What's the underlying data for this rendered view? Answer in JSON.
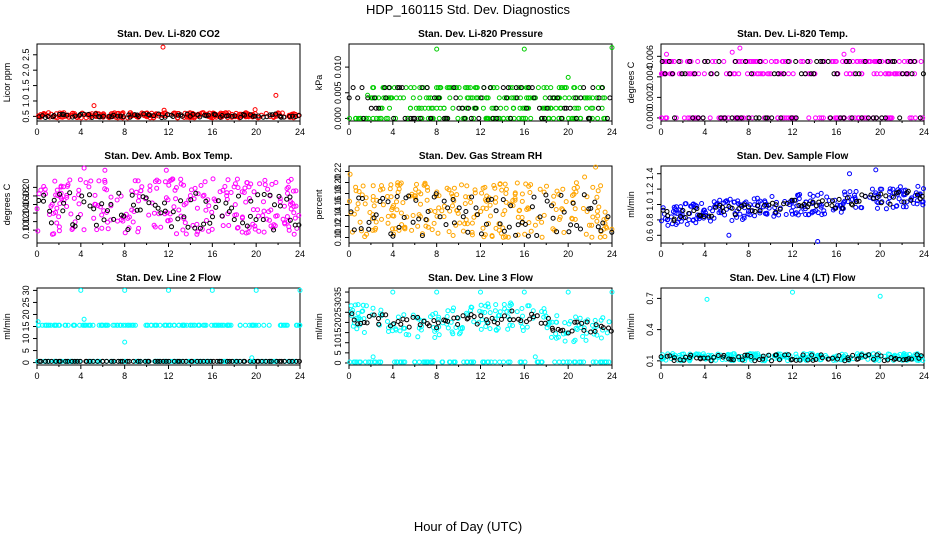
{
  "figure": {
    "title": "HDP_160115  Std. Dev. Diagnostics",
    "xlabel": "Hour of Day (UTC)"
  },
  "colors": {
    "red": "#ff0000",
    "green": "#00cc00",
    "magenta": "#ff00ff",
    "orange": "#ffa500",
    "blue": "#0000ff",
    "cyan": "#00ffff",
    "black": "#000000"
  },
  "chart_data": [
    {
      "type": "scatter",
      "title": "Stan. Dev. Li-820 CO2",
      "ylabel": "Licor ppm",
      "xlim": [
        0,
        24
      ],
      "ylim": [
        0.35,
        2.85
      ],
      "xticks": [
        0,
        4,
        8,
        12,
        16,
        20,
        24
      ],
      "yticks": [
        0.5,
        1.0,
        1.5,
        2.0,
        2.5
      ],
      "ytick_labels": [
        "0.5",
        "1.0",
        "1.5",
        "2.0",
        "2.5"
      ],
      "color_key": "red",
      "pattern": "band",
      "band": [
        0.45,
        0.62
      ],
      "black_band": [
        0.46,
        0.58
      ],
      "outliers": [
        [
          11.5,
          2.75
        ],
        [
          21.8,
          1.18
        ],
        [
          5.2,
          0.85
        ],
        [
          19.9,
          0.72
        ],
        [
          11.6,
          0.7
        ]
      ]
    },
    {
      "type": "scatter",
      "title": "Stan. Dev. Li-820 Pressure",
      "ylabel": "kPa",
      "xlim": [
        0,
        24
      ],
      "ylim": [
        -0.0005,
        0.0145
      ],
      "xticks": [
        0,
        4,
        8,
        12,
        16,
        20,
        24
      ],
      "yticks": [
        0.0,
        0.005,
        0.01
      ],
      "ytick_labels": [
        "0.000",
        "0.005",
        "0.010"
      ],
      "color_key": "green",
      "pattern": "levels",
      "levels": [
        0.0,
        0.002,
        0.004,
        0.006
      ],
      "level_range": [
        2,
        24
      ],
      "black_levels": [
        0.0,
        0.002,
        0.004,
        0.006
      ],
      "outliers": [
        [
          8,
          0.0135
        ],
        [
          16,
          0.0135
        ],
        [
          24,
          0.0138
        ],
        [
          20,
          0.008
        ],
        [
          1.7,
          0.0045
        ]
      ]
    },
    {
      "type": "scatter",
      "title": "Stan. Dev. Li-820 Temp.",
      "ylabel": "degrees C",
      "xlim": [
        0,
        24
      ],
      "ylim": [
        -0.0003,
        0.0072
      ],
      "xticks": [
        0,
        4,
        8,
        12,
        16,
        20,
        24
      ],
      "yticks": [
        0.0,
        0.002,
        0.004,
        0.006
      ],
      "ytick_labels": [
        "0.000",
        "0.002",
        "0.004",
        "0.006"
      ],
      "color_key": "magenta",
      "pattern": "levels",
      "levels": [
        0.0,
        0.0043,
        0.0055
      ],
      "level_range": [
        0,
        24
      ],
      "black_levels": [
        0.0,
        0.0043,
        0.0055
      ],
      "outliers": [
        [
          7.2,
          0.0068
        ],
        [
          6.5,
          0.0064
        ],
        [
          16.7,
          0.0062
        ],
        [
          0.5,
          0.0062
        ],
        [
          17.5,
          0.0066
        ]
      ]
    },
    {
      "type": "scatter",
      "title": "Stan. Dev. Amb. Box Temp.",
      "ylabel": "degrees C",
      "xlim": [
        0,
        24
      ],
      "ylim": [
        0.07,
        0.25
      ],
      "xticks": [
        0,
        4,
        8,
        12,
        16,
        20,
        24
      ],
      "yticks": [
        0.1,
        0.12,
        0.14,
        0.16,
        0.18,
        0.2
      ],
      "ytick_labels": [
        "0.10",
        "0.12",
        "0.14",
        "0.16",
        "0.18",
        "0.20"
      ],
      "color_key": "magenta",
      "pattern": "band",
      "band": [
        0.09,
        0.22
      ],
      "black_band": [
        0.1,
        0.19
      ],
      "outliers": [
        [
          4.3,
          0.245
        ],
        [
          6.2,
          0.24
        ],
        [
          11.8,
          0.24
        ]
      ]
    },
    {
      "type": "scatter",
      "title": "Stan. Dev. Gas Stream RH",
      "ylabel": "percent",
      "xlim": [
        0,
        24
      ],
      "ylim": [
        0.09,
        0.23
      ],
      "xticks": [
        0,
        4,
        8,
        12,
        16,
        20,
        24
      ],
      "yticks": [
        0.1,
        0.12,
        0.14,
        0.16,
        0.18,
        0.2,
        0.22
      ],
      "ytick_labels": [
        "0.10",
        "0.12",
        "0.14",
        "0.16",
        "0.18",
        "0.20",
        "0.22"
      ],
      "color_key": "orange",
      "pattern": "band",
      "band": [
        0.1,
        0.2
      ],
      "black_band": [
        0.1,
        0.18
      ],
      "outliers": [
        [
          22.5,
          0.228
        ],
        [
          0.1,
          0.215
        ],
        [
          21.5,
          0.21
        ]
      ]
    },
    {
      "type": "scatter",
      "title": "Stan. Dev. Sample Flow",
      "ylabel": "ml/min",
      "xlim": [
        0,
        24
      ],
      "ylim": [
        0.5,
        1.5
      ],
      "xticks": [
        0,
        4,
        8,
        12,
        16,
        20,
        24
      ],
      "yticks": [
        0.6,
        0.8,
        1.0,
        1.2,
        1.4
      ],
      "ytick_labels": [
        "0.6",
        "0.8",
        "1.0",
        "1.2",
        "1.4"
      ],
      "color_key": "blue",
      "pattern": "trend",
      "trend": [
        [
          0,
          0.85
        ],
        [
          8,
          0.95
        ],
        [
          16,
          1.02
        ],
        [
          24,
          1.12
        ]
      ],
      "spread": 0.14,
      "black_spread": 0.08,
      "outliers": [
        [
          19.6,
          1.45
        ],
        [
          17.2,
          1.4
        ],
        [
          14.3,
          0.52
        ],
        [
          6.2,
          0.6
        ]
      ]
    },
    {
      "type": "scatter",
      "title": "Stan. Dev. Line 2 Flow",
      "ylabel": "ml/min",
      "xlim": [
        0,
        24
      ],
      "ylim": [
        -1,
        31
      ],
      "xticks": [
        0,
        4,
        8,
        12,
        16,
        20,
        24
      ],
      "yticks": [
        0,
        5,
        10,
        15,
        20,
        25,
        30
      ],
      "ytick_labels": [
        "0",
        "5",
        "10",
        "15",
        "20",
        "25",
        "30"
      ],
      "color_key": "cyan",
      "pattern": "levels",
      "levels": [
        0.5,
        15.5
      ],
      "level_range": [
        0,
        24
      ],
      "black_levels": [
        0.5
      ],
      "outliers": [
        [
          4,
          30
        ],
        [
          8,
          30
        ],
        [
          12,
          30
        ],
        [
          16,
          30
        ],
        [
          20,
          30
        ],
        [
          24,
          30
        ],
        [
          0.1,
          17
        ],
        [
          8,
          8.5
        ],
        [
          4.3,
          18
        ],
        [
          19.6,
          2
        ]
      ]
    },
    {
      "type": "scatter",
      "title": "Stan. Dev. Line 3 Flow",
      "ylabel": "ml/min",
      "xlim": [
        0,
        24
      ],
      "ylim": [
        -1,
        37
      ],
      "xticks": [
        0,
        4,
        8,
        12,
        16,
        20,
        24
      ],
      "yticks": [
        0,
        5,
        10,
        15,
        20,
        25,
        30,
        35
      ],
      "ytick_labels": [
        "0",
        "5",
        "10",
        "15",
        "20",
        "25",
        "30",
        "35"
      ],
      "color_key": "cyan",
      "pattern": "line3",
      "base_level": 0.5,
      "trend": [
        [
          0,
          22
        ],
        [
          4,
          21
        ],
        [
          8,
          19
        ],
        [
          12,
          22
        ],
        [
          16,
          23
        ],
        [
          20,
          17
        ],
        [
          24,
          18
        ]
      ],
      "spread": 7,
      "black_spread": 3,
      "outliers": [
        [
          4,
          35
        ],
        [
          8,
          35
        ],
        [
          12,
          35
        ],
        [
          16,
          35
        ],
        [
          20,
          35
        ],
        [
          24,
          35
        ],
        [
          2.2,
          3
        ],
        [
          17,
          3
        ]
      ]
    },
    {
      "type": "scatter",
      "title": "Stan. Dev. Line 4 (LT) Flow",
      "ylabel": "ml/min",
      "xlim": [
        0,
        24
      ],
      "ylim": [
        0.06,
        0.8
      ],
      "xticks": [
        0,
        4,
        8,
        12,
        16,
        20,
        24
      ],
      "yticks": [
        0.1,
        0.4,
        0.7
      ],
      "ytick_labels": [
        "0.1",
        "0.4",
        "0.7"
      ],
      "color_key": "cyan",
      "pattern": "band",
      "band": [
        0.1,
        0.17
      ],
      "black_band": [
        0.1,
        0.16
      ],
      "outliers": [
        [
          4.2,
          0.69
        ],
        [
          12,
          0.76
        ],
        [
          20,
          0.72
        ]
      ]
    }
  ]
}
